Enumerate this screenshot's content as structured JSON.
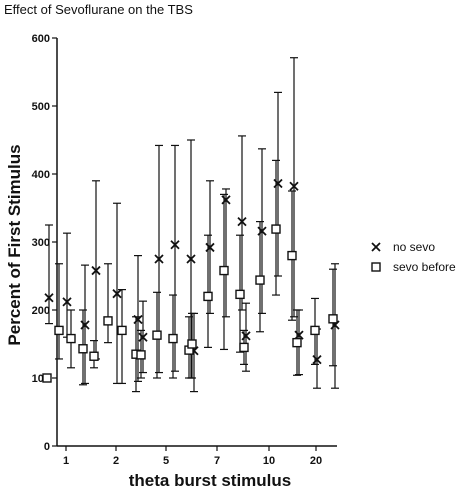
{
  "chart_data": {
    "type": "scatter",
    "title": "Effect of Sevoflurane on the TBS",
    "xlabel": "theta burst stimulus",
    "ylabel": "Percent of First Stimulus",
    "ylim": [
      0,
      600
    ],
    "yticks": [
      "0",
      "100",
      "200",
      "300",
      "400",
      "500",
      "600"
    ],
    "categories": [
      "1",
      "2",
      "5",
      "7",
      "10",
      "20"
    ],
    "grid": false,
    "legend_position": "right",
    "series": [
      {
        "name": "no sevo",
        "marker": "x",
        "groups": [
          [
            {
              "y": 218,
              "low": 180,
              "high": 325
            },
            {
              "y": 212,
              "low": 160,
              "high": 313
            },
            {
              "y": 178,
              "low": 92,
              "high": 266
            }
          ],
          [
            {
              "y": 258,
              "low": 128,
              "high": 390
            },
            {
              "y": 224,
              "low": 92,
              "high": 357
            },
            {
              "y": 186,
              "low": 95,
              "high": 280
            }
          ],
          [
            {
              "y": 160,
              "low": 108,
              "high": 213
            },
            {
              "y": 275,
              "low": 108,
              "high": 442
            },
            {
              "y": 296,
              "low": 110,
              "high": 442
            },
            {
              "y": 275,
              "low": 100,
              "high": 450
            }
          ],
          [
            {
              "y": 140,
              "low": 80,
              "high": 195
            },
            {
              "y": 292,
              "low": 195,
              "high": 390
            },
            {
              "y": 362,
              "low": 190,
              "high": 378
            },
            {
              "y": 330,
              "low": 200,
              "high": 456
            }
          ],
          [
            {
              "y": 162,
              "low": 110,
              "high": 210
            },
            {
              "y": 316,
              "low": 195,
              "high": 437
            },
            {
              "y": 386,
              "low": 250,
              "high": 520
            },
            {
              "y": 382,
              "low": 190,
              "high": 571
            }
          ],
          [
            {
              "y": 163,
              "low": 105,
              "high": 200
            },
            {
              "y": 127,
              "low": 85,
              "high": 172
            },
            {
              "y": 178,
              "low": 85,
              "high": 268
            }
          ]
        ]
      },
      {
        "name": "sevo before",
        "marker": "square",
        "groups": [
          [
            {
              "y": 100,
              "low": 100,
              "high": 100
            },
            {
              "y": 170,
              "low": 128,
              "high": 268
            },
            {
              "y": 158,
              "low": 115,
              "high": 200
            },
            {
              "y": 143,
              "low": 90,
              "high": 200
            }
          ],
          [
            {
              "y": 132,
              "low": 115,
              "high": 155
            },
            {
              "y": 184,
              "low": 152,
              "high": 268
            },
            {
              "y": 170,
              "low": 92,
              "high": 230
            },
            {
              "y": 135,
              "low": 80,
              "high": 190
            }
          ],
          [
            {
              "y": 134,
              "low": 100,
              "high": 170
            },
            {
              "y": 163,
              "low": 100,
              "high": 226
            },
            {
              "y": 158,
              "low": 100,
              "high": 222
            },
            {
              "y": 141,
              "low": 100,
              "high": 190
            }
          ],
          [
            {
              "y": 150,
              "low": 100,
              "high": 195
            },
            {
              "y": 220,
              "low": 145,
              "high": 310
            },
            {
              "y": 258,
              "low": 142,
              "high": 370
            },
            {
              "y": 223,
              "low": 138,
              "high": 310
            }
          ],
          [
            {
              "y": 145,
              "low": 120,
              "high": 170
            },
            {
              "y": 244,
              "low": 168,
              "high": 330
            },
            {
              "y": 319,
              "low": 222,
              "high": 420
            },
            {
              "y": 280,
              "low": 185,
              "high": 375
            }
          ],
          [
            {
              "y": 152,
              "low": 104,
              "high": 200
            },
            {
              "y": 170,
              "low": 120,
              "high": 217
            },
            {
              "y": 187,
              "low": 118,
              "high": 260
            }
          ]
        ]
      }
    ]
  }
}
